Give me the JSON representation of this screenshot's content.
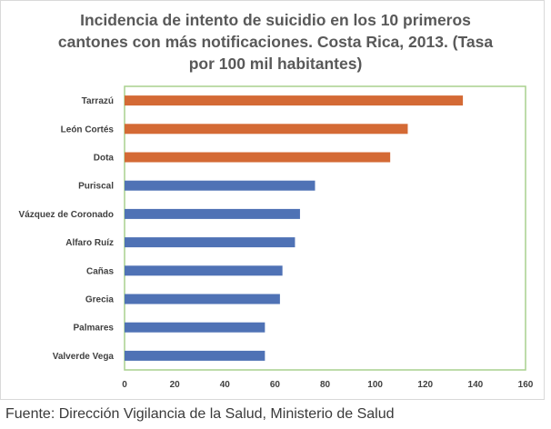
{
  "chart_data": {
    "type": "bar",
    "orientation": "horizontal",
    "title": "Incidencia de intento de suicidio en los 10 primeros cantones con más notificaciones. Costa Rica, 2013. (Tasa por 100 mil habitantes)",
    "categories": [
      "Tarrazú",
      "León Cortés",
      "Dota",
      "Puriscal",
      "Vázquez de Coronado",
      "Alfaro Ruíz",
      "Cañas",
      "Grecia",
      "Palmares",
      "Valverde Vega"
    ],
    "values": [
      135,
      113,
      106,
      76,
      70,
      68,
      63,
      62,
      56,
      56
    ],
    "bar_colors": [
      "#d46a35",
      "#d46a35",
      "#d46a35",
      "#4f72b5",
      "#4f72b5",
      "#4f72b5",
      "#4f72b5",
      "#4f72b5",
      "#4f72b5",
      "#4f72b5"
    ],
    "xlim": [
      0,
      160
    ],
    "xticks": [
      0,
      20,
      40,
      60,
      80,
      100,
      120,
      140,
      160
    ],
    "grid": false,
    "plot_border_color": "#a9d18e"
  },
  "footer": {
    "source": "Fuente: Dirección Vigilancia de la Salud, Ministerio de Salud"
  }
}
